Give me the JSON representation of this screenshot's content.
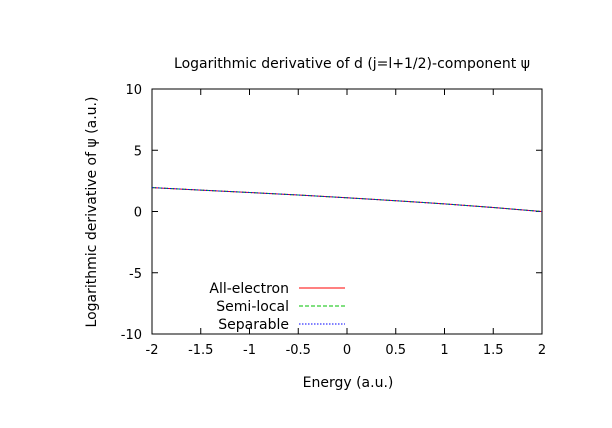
{
  "chart_data": {
    "type": "line",
    "title": "Logarithmic derivative of d (j=l+1/2)-component ψ",
    "xlabel": "Energy (a.u.)",
    "ylabel": "Logarithmic derivative of ψ (a.u.)",
    "xlim": [
      -2,
      2
    ],
    "ylim": [
      -10,
      10
    ],
    "xticks": [
      -2,
      -1.5,
      -1,
      -0.5,
      0,
      0.5,
      1,
      1.5,
      2
    ],
    "yticks": [
      -10,
      -5,
      0,
      5,
      10
    ],
    "grid": false,
    "legend_position": "bottom-left",
    "series": [
      {
        "name": "All-electron",
        "color": "#ff0000",
        "dash": "solid",
        "x": [
          -2,
          -1.5,
          -1,
          -0.5,
          0,
          0.5,
          1,
          1.5,
          2
        ],
        "y": [
          1.95,
          1.75,
          1.55,
          1.35,
          1.12,
          0.88,
          0.62,
          0.33,
          0.0
        ]
      },
      {
        "name": "Semi-local",
        "color": "#00c000",
        "dash": "dashed",
        "x": [
          -2,
          -1.5,
          -1,
          -0.5,
          0,
          0.5,
          1,
          1.5,
          2
        ],
        "y": [
          1.95,
          1.75,
          1.55,
          1.35,
          1.12,
          0.88,
          0.62,
          0.33,
          0.0
        ]
      },
      {
        "name": "Separable",
        "color": "#0000ff",
        "dash": "dotted",
        "x": [
          -2,
          -1.5,
          -1,
          -0.5,
          0,
          0.5,
          1,
          1.5,
          2
        ],
        "y": [
          1.95,
          1.75,
          1.55,
          1.35,
          1.12,
          0.88,
          0.62,
          0.33,
          0.0
        ]
      }
    ]
  }
}
